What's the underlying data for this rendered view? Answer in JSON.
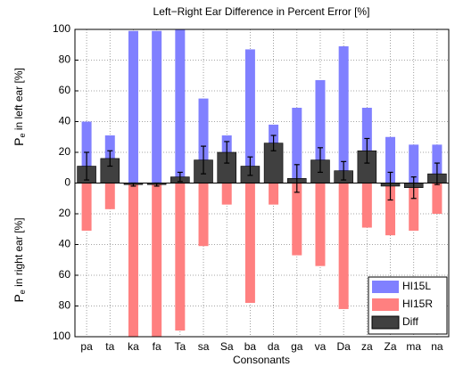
{
  "chart_data": {
    "type": "bar",
    "title": "Left−Right Ear Difference in Percent Error [%]",
    "xlabel": "Consonants",
    "ylabel_upper": [
      "P",
      "e",
      " in left ear [%]"
    ],
    "ylabel_lower": [
      "P",
      "e",
      " in right ear [%]"
    ],
    "categories": [
      "pa",
      "ta",
      "ka",
      "fa",
      "Ta",
      "sa",
      "Sa",
      "ba",
      "da",
      "ga",
      "va",
      "Da",
      "za",
      "Za",
      "ma",
      "na"
    ],
    "series": [
      {
        "name": "HI15L",
        "color": "#8080ff",
        "values": [
          40,
          31,
          99,
          99,
          100,
          55,
          31,
          87,
          38,
          49,
          67,
          89,
          49,
          30,
          25,
          25
        ]
      },
      {
        "name": "HI15R",
        "color": "#ff8080",
        "values": [
          -31,
          -17,
          -100,
          -100,
          -96,
          -41,
          -14,
          -78,
          -14,
          -47,
          -54,
          -82,
          -29,
          -34,
          -31,
          -20
        ]
      },
      {
        "name": "Diff",
        "color": "#404040",
        "values": [
          11,
          16,
          -1,
          -1,
          4,
          15,
          20,
          11,
          26,
          3,
          15,
          8,
          21,
          -2,
          -3,
          6
        ],
        "errors": [
          9,
          5,
          1,
          1,
          3,
          9,
          7,
          6,
          5,
          9,
          8,
          6,
          8,
          9,
          7,
          7
        ]
      }
    ],
    "ylim": [
      -100,
      100
    ],
    "yticks": [
      {
        "value": -100,
        "label": "100"
      },
      {
        "value": -80,
        "label": "80"
      },
      {
        "value": -60,
        "label": "60"
      },
      {
        "value": -40,
        "label": "40"
      },
      {
        "value": -20,
        "label": "20"
      },
      0,
      20,
      40,
      60,
      80,
      100
    ],
    "grid": true,
    "legend": "lower right"
  }
}
